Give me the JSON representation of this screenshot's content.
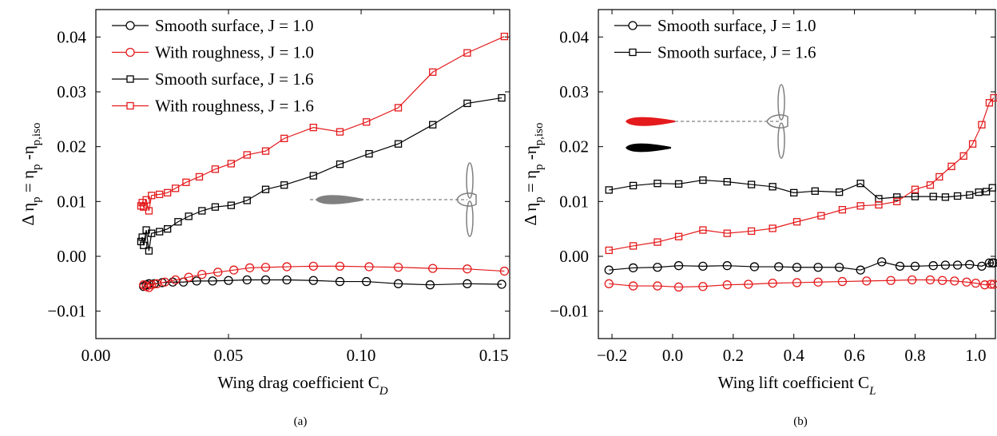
{
  "chart_data": [
    {
      "type": "line",
      "xlabel": [
        "Wing drag coefficient C",
        "D"
      ],
      "ylabel": [
        "Δ η",
        "p",
        " = η",
        "p",
        " -η",
        "p,iso"
      ],
      "caption": "(a)",
      "xlim": [
        0,
        0.156
      ],
      "ylim": [
        -0.015,
        0.045
      ],
      "xticks": [
        {
          "value": 0,
          "label": "0.00"
        },
        0.05,
        {
          "value": 0.1,
          "label": "0.10"
        },
        0.15
      ],
      "yticks": [
        {
          "value": -0.01,
          "label": "−0.01"
        },
        {
          "value": 0,
          "label": "0.00"
        },
        0.01,
        0.02,
        0.03,
        0.04
      ],
      "legend": "upper left",
      "series": [
        {
          "name": "Smooth surface, J = 1.0",
          "color": "#000000",
          "marker": "circle",
          "x": [
            0.018,
            0.019,
            0.02,
            0.022,
            0.025,
            0.029,
            0.033,
            0.038,
            0.044,
            0.05,
            0.057,
            0.064,
            0.072,
            0.082,
            0.092,
            0.102,
            0.114,
            0.126,
            0.14,
            0.153
          ],
          "values": [
            -0.0055,
            -0.0052,
            -0.005,
            -0.005,
            -0.0048,
            -0.0047,
            -0.0047,
            -0.0045,
            -0.0045,
            -0.0044,
            -0.0043,
            -0.0043,
            -0.0043,
            -0.0044,
            -0.0046,
            -0.0046,
            -0.005,
            -0.0052,
            -0.005,
            -0.0051
          ]
        },
        {
          "name": "With roughness, J = 1.0",
          "color": "#e41a1c",
          "marker": "circle",
          "x": [
            0.018,
            0.019,
            0.02,
            0.021,
            0.023,
            0.026,
            0.03,
            0.035,
            0.04,
            0.046,
            0.052,
            0.058,
            0.064,
            0.072,
            0.082,
            0.092,
            0.103,
            0.114,
            0.127,
            0.14,
            0.154
          ],
          "values": [
            -0.0052,
            -0.0055,
            -0.0057,
            -0.0052,
            -0.005,
            -0.0047,
            -0.0043,
            -0.0038,
            -0.0033,
            -0.0029,
            -0.0025,
            -0.0021,
            -0.002,
            -0.0019,
            -0.0018,
            -0.0018,
            -0.0019,
            -0.002,
            -0.0022,
            -0.0023,
            -0.0027
          ]
        },
        {
          "name": "Smooth surface, J = 1.6",
          "color": "#000000",
          "marker": "square",
          "x": [
            0.017,
            0.0175,
            0.018,
            0.019,
            0.02,
            0.021,
            0.024,
            0.027,
            0.031,
            0.035,
            0.04,
            0.045,
            0.051,
            0.057,
            0.064,
            0.071,
            0.082,
            0.092,
            0.103,
            0.114,
            0.127,
            0.14,
            0.153
          ],
          "values": [
            0.0027,
            0.0035,
            0.002,
            0.0048,
            0.001,
            0.0042,
            0.0045,
            0.005,
            0.0063,
            0.0073,
            0.0083,
            0.009,
            0.0093,
            0.0102,
            0.0122,
            0.013,
            0.0147,
            0.0168,
            0.0187,
            0.0205,
            0.024,
            0.0279,
            0.0289
          ]
        },
        {
          "name": "With roughness, J = 1.6",
          "color": "#e41a1c",
          "marker": "square",
          "x": [
            0.017,
            0.0175,
            0.018,
            0.019,
            0.02,
            0.021,
            0.024,
            0.027,
            0.03,
            0.034,
            0.039,
            0.045,
            0.051,
            0.057,
            0.064,
            0.071,
            0.082,
            0.092,
            0.102,
            0.114,
            0.127,
            0.14,
            0.154
          ],
          "values": [
            0.0092,
            0.0098,
            0.009,
            0.0103,
            0.0083,
            0.0111,
            0.0113,
            0.0116,
            0.0124,
            0.0135,
            0.0145,
            0.0159,
            0.0169,
            0.0185,
            0.0192,
            0.0215,
            0.0235,
            0.0227,
            0.0245,
            0.0271,
            0.0336,
            0.0371,
            0.0401
          ]
        }
      ]
    },
    {
      "type": "line",
      "xlabel": [
        "Wing lift coefficient C",
        "L"
      ],
      "ylabel": [
        "Δ η",
        "p",
        " = η",
        "p",
        " -η",
        "p,iso"
      ],
      "caption": "(b)",
      "xlim": [
        -0.245,
        1.065
      ],
      "ylim": [
        -0.015,
        0.045
      ],
      "xticks": [
        {
          "value": -0.2,
          "label": "−0.2"
        },
        {
          "value": 0,
          "label": "0.0"
        },
        0.2,
        0.4,
        0.6,
        0.8,
        {
          "value": 1,
          "label": "1.0"
        }
      ],
      "yticks": [
        {
          "value": -0.01,
          "label": "−0.01"
        },
        {
          "value": 0,
          "label": "0.00"
        },
        0.01,
        0.02,
        0.03,
        0.04
      ],
      "legend": "upper left",
      "series": [
        {
          "name": "Smooth surface, J = 1.0",
          "color": "#000000",
          "marker": "circle",
          "x": [
            -0.21,
            -0.13,
            -0.05,
            0.02,
            0.1,
            0.18,
            0.27,
            0.35,
            0.41,
            0.48,
            0.55,
            0.62,
            0.69,
            0.75,
            0.8,
            0.86,
            0.9,
            0.94,
            0.98,
            1.02,
            1.045,
            1.055,
            1.06
          ],
          "values": [
            -0.0025,
            -0.0021,
            -0.002,
            -0.0017,
            -0.0018,
            -0.0017,
            -0.0019,
            -0.0019,
            -0.002,
            -0.002,
            -0.002,
            -0.0025,
            -0.001,
            -0.0018,
            -0.0018,
            -0.0017,
            -0.0016,
            -0.0016,
            -0.0015,
            -0.0018,
            -0.0012,
            -0.0012,
            -0.0012
          ]
        },
        {
          "name": "Smooth surface, J = 1.6",
          "color": "#000000",
          "marker": "square",
          "x": [
            -0.21,
            -0.13,
            -0.05,
            0.02,
            0.1,
            0.18,
            0.26,
            0.33,
            0.4,
            0.47,
            0.55,
            0.62,
            0.68,
            0.74,
            0.8,
            0.86,
            0.9,
            0.94,
            0.98,
            1.01,
            1.035,
            1.055
          ],
          "values": [
            0.0121,
            0.0129,
            0.0133,
            0.0132,
            0.0139,
            0.0136,
            0.0131,
            0.0127,
            0.0116,
            0.0119,
            0.0117,
            0.0133,
            0.0105,
            0.0108,
            0.0109,
            0.0109,
            0.0108,
            0.011,
            0.0112,
            0.0117,
            0.0118,
            0.0125
          ]
        },
        {
          "color": "#e41a1c",
          "marker": "circle",
          "x": [
            -0.21,
            -0.13,
            -0.05,
            0.02,
            0.1,
            0.18,
            0.25,
            0.33,
            0.41,
            0.48,
            0.56,
            0.64,
            0.72,
            0.79,
            0.85,
            0.89,
            0.93,
            0.97,
            1.0,
            1.03,
            1.05,
            1.06
          ],
          "values": [
            -0.005,
            -0.0054,
            -0.0054,
            -0.0056,
            -0.0055,
            -0.0052,
            -0.0051,
            -0.0049,
            -0.0048,
            -0.0047,
            -0.0046,
            -0.0045,
            -0.0044,
            -0.0043,
            -0.0043,
            -0.0044,
            -0.0045,
            -0.0047,
            -0.0049,
            -0.0052,
            -0.0051,
            -0.0051
          ]
        },
        {
          "color": "#e41a1c",
          "marker": "square",
          "x": [
            -0.21,
            -0.13,
            -0.05,
            0.02,
            0.1,
            0.18,
            0.26,
            0.33,
            0.41,
            0.49,
            0.56,
            0.62,
            0.68,
            0.74,
            0.8,
            0.85,
            0.88,
            0.92,
            0.96,
            0.99,
            1.02,
            1.045,
            1.06
          ],
          "values": [
            0.0011,
            0.0019,
            0.0026,
            0.0036,
            0.0048,
            0.0042,
            0.0046,
            0.0051,
            0.0063,
            0.0074,
            0.0085,
            0.0092,
            0.0094,
            0.01,
            0.0122,
            0.013,
            0.0145,
            0.0164,
            0.0183,
            0.0205,
            0.024,
            0.028,
            0.0289
          ]
        }
      ]
    }
  ]
}
